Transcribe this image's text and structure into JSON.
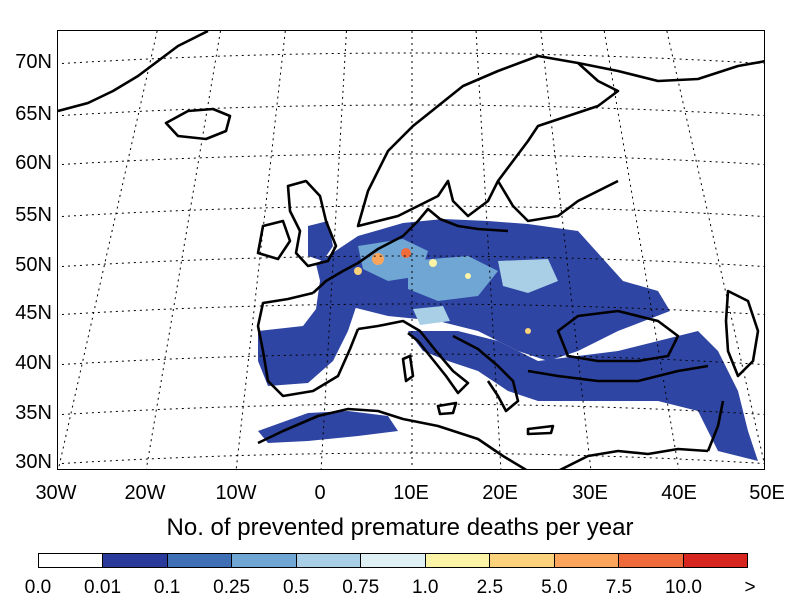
{
  "map": {
    "lat_ticks": [
      "70N",
      "65N",
      "60N",
      "55N",
      "50N",
      "45N",
      "40N",
      "35N",
      "30N"
    ],
    "lon_ticks": [
      "30W",
      "20W",
      "10W",
      "0",
      "10E",
      "20E",
      "30E",
      "40E",
      "50E"
    ],
    "graticule": {
      "lat_values": [
        30,
        35,
        40,
        45,
        50,
        55,
        60,
        65,
        70
      ],
      "lon_values": [
        -30,
        -20,
        -10,
        0,
        10,
        20,
        30,
        40,
        50
      ]
    },
    "projection": "conic (Lambert-like), dashed graticule"
  },
  "caption": "No. of prevented premature deaths per year",
  "colorbar": {
    "colors": [
      "#ffffff",
      "#2a3a9a",
      "#3f6fb5",
      "#6fa6d4",
      "#a9cfe6",
      "#dff0f5",
      "#fbf3a6",
      "#fdd27c",
      "#fba55c",
      "#f06b3b",
      "#d7261f"
    ],
    "labels": [
      "0.0",
      "0.01",
      "0.1",
      "0.25",
      "0.5",
      "0.75",
      "1.0",
      "2.5",
      "5.0",
      "7.5",
      "10.0",
      ">"
    ]
  }
}
